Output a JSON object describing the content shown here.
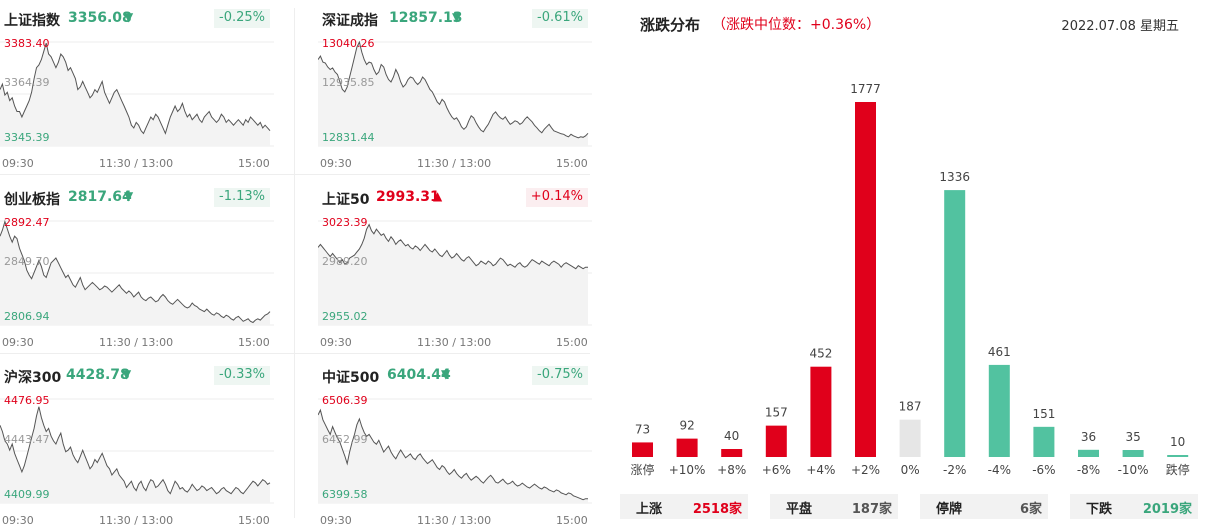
{
  "indices": [
    {
      "name": "上证指数",
      "value": "3356.08",
      "arrow": "▼",
      "change": "-0.25%",
      "trend": "down",
      "high": "3383.40",
      "mid": "3364.39",
      "low": "3345.39",
      "x_labels": [
        "09:30",
        "11:30 / 13:00",
        "15:00"
      ],
      "series": [
        3366,
        3368,
        3364,
        3365,
        3362,
        3363,
        3360,
        3358,
        3358,
        3356,
        3358,
        3360,
        3362,
        3365,
        3370,
        3374,
        3375,
        3377,
        3380,
        3383,
        3379,
        3378,
        3376,
        3374,
        3376,
        3379,
        3378,
        3376,
        3373,
        3374,
        3372,
        3370,
        3366,
        3367,
        3369,
        3367,
        3365,
        3363,
        3364,
        3366,
        3365,
        3367,
        3369,
        3365,
        3363,
        3361,
        3363,
        3365,
        3366,
        3364,
        3362,
        3360,
        3358,
        3356,
        3353,
        3352,
        3354,
        3353,
        3351,
        3350,
        3352,
        3354,
        3356,
        3355,
        3357,
        3356,
        3354,
        3352,
        3350,
        3353,
        3356,
        3358,
        3360,
        3358,
        3359,
        3361,
        3358,
        3356,
        3357,
        3355,
        3356,
        3357,
        3355,
        3354,
        3356,
        3357,
        3358,
        3356,
        3355,
        3354,
        3355,
        3357,
        3356,
        3354,
        3355,
        3354,
        3353,
        3354,
        3355,
        3354,
        3353,
        3355,
        3354,
        3356,
        3355,
        3354,
        3353,
        3354,
        3352,
        3353,
        3352,
        3351
      ]
    },
    {
      "name": "深证成指",
      "value": "12857.13",
      "arrow": "▼",
      "change": "-0.61%",
      "trend": "down",
      "high": "13040.26",
      "mid": "12935.85",
      "low": "12831.44",
      "x_labels": [
        "09:30",
        "11:30 / 13:00",
        "15:00"
      ],
      "series": [
        13005,
        13012,
        13000,
        12998,
        12990,
        12985,
        12988,
        12980,
        12975,
        12960,
        12945,
        12940,
        12950,
        12970,
        12990,
        13010,
        13030,
        13040,
        13020,
        13005,
        12995,
        13000,
        12998,
        12985,
        12975,
        12980,
        12995,
        12990,
        12975,
        12965,
        12960,
        12970,
        12985,
        12975,
        12960,
        12950,
        12955,
        12965,
        12970,
        12968,
        12960,
        12955,
        12960,
        12970,
        12965,
        12955,
        12945,
        12940,
        12930,
        12920,
        12915,
        12925,
        12920,
        12908,
        12898,
        12890,
        12885,
        12888,
        12880,
        12870,
        12865,
        12870,
        12882,
        12892,
        12888,
        12878,
        12870,
        12863,
        12860,
        12868,
        12875,
        12885,
        12895,
        12900,
        12893,
        12888,
        12885,
        12890,
        12882,
        12875,
        12878,
        12882,
        12880,
        12875,
        12878,
        12885,
        12890,
        12885,
        12880,
        12873,
        12868,
        12862,
        12858,
        12865,
        12870,
        12875,
        12868,
        12862,
        12860,
        12858,
        12856,
        12855,
        12852,
        12850,
        12855,
        12852,
        12850,
        12848,
        12850,
        12849,
        12852,
        12857
      ]
    },
    {
      "name": "创业板指",
      "value": "2817.64",
      "arrow": "▼",
      "change": "-1.13%",
      "trend": "down",
      "high": "2892.47",
      "mid": "2849.70",
      "low": "2806.94",
      "x_labels": [
        "09:30",
        "11:30 / 13:00",
        "15:00"
      ],
      "series": [
        2880,
        2885,
        2892,
        2886,
        2880,
        2875,
        2880,
        2878,
        2870,
        2865,
        2860,
        2852,
        2848,
        2845,
        2850,
        2855,
        2860,
        2855,
        2848,
        2846,
        2852,
        2858,
        2860,
        2862,
        2858,
        2854,
        2850,
        2846,
        2848,
        2844,
        2840,
        2838,
        2842,
        2846,
        2840,
        2836,
        2838,
        2840,
        2842,
        2840,
        2838,
        2836,
        2837,
        2839,
        2838,
        2836,
        2834,
        2836,
        2838,
        2840,
        2837,
        2835,
        2833,
        2835,
        2833,
        2830,
        2832,
        2834,
        2830,
        2828,
        2827,
        2829,
        2830,
        2828,
        2826,
        2827,
        2830,
        2832,
        2830,
        2827,
        2825,
        2824,
        2826,
        2828,
        2826,
        2824,
        2822,
        2821,
        2822,
        2825,
        2823,
        2822,
        2820,
        2819,
        2818,
        2820,
        2818,
        2816,
        2815,
        2817,
        2816,
        2814,
        2813,
        2815,
        2814,
        2812,
        2811,
        2813,
        2814,
        2812,
        2810,
        2811,
        2812,
        2810,
        2809,
        2811,
        2812,
        2811,
        2813,
        2815,
        2816,
        2818
      ]
    },
    {
      "name": "上证50",
      "value": "2993.31",
      "arrow": "▲",
      "change": "+0.14%",
      "trend": "up",
      "high": "3023.39",
      "mid": "2989.20",
      "low": "2955.02",
      "x_labels": [
        "09:30",
        "11:30 / 13:00",
        "15:00"
      ],
      "series": [
        3006,
        3008,
        3006,
        3004,
        3002,
        3000,
        3002,
        3000,
        2998,
        2996,
        2998,
        2995,
        2996,
        2999,
        3000,
        3001,
        3003,
        3005,
        3008,
        3012,
        3018,
        3021,
        3017,
        3015,
        3018,
        3016,
        3014,
        3015,
        3012,
        3010,
        3013,
        3011,
        3008,
        3010,
        3011,
        3009,
        3007,
        3008,
        3006,
        3005,
        3007,
        3006,
        3004,
        3006,
        3008,
        3006,
        3004,
        3003,
        3005,
        3003,
        3001,
        3000,
        3002,
        3004,
        3001,
        2999,
        3000,
        3002,
        3000,
        2998,
        2997,
        2999,
        3000,
        2998,
        2996,
        2994,
        2995,
        2997,
        2996,
        2995,
        2997,
        2996,
        2994,
        2995,
        2997,
        2999,
        2998,
        2996,
        2994,
        2995,
        2994,
        2993,
        2995,
        2996,
        2994,
        2993,
        2994,
        2996,
        2998,
        2997,
        2996,
        2995,
        2997,
        2996,
        2995,
        2994,
        2996,
        2997,
        2996,
        2995,
        2993,
        2995,
        2996,
        2995,
        2994,
        2993,
        2992,
        2994,
        2993,
        2992,
        2993,
        2993
      ]
    },
    {
      "name": "沪深300",
      "value": "4428.78",
      "arrow": "▼",
      "change": "-0.33%",
      "trend": "down",
      "high": "4476.95",
      "mid": "4443.47",
      "low": "4409.99",
      "x_labels": [
        "09:30",
        "11:30 / 13:00",
        "15:00"
      ],
      "series": [
        4460,
        4456,
        4450,
        4448,
        4444,
        4448,
        4442,
        4438,
        4434,
        4430,
        4434,
        4440,
        4446,
        4452,
        4458,
        4466,
        4472,
        4465,
        4460,
        4456,
        4458,
        4453,
        4450,
        4448,
        4452,
        4455,
        4448,
        4443,
        4444,
        4446,
        4441,
        4438,
        4436,
        4440,
        4444,
        4440,
        4436,
        4432,
        4434,
        4438,
        4436,
        4439,
        4442,
        4438,
        4434,
        4432,
        4428,
        4430,
        4432,
        4428,
        4426,
        4424,
        4420,
        4422,
        4424,
        4420,
        4418,
        4422,
        4424,
        4420,
        4418,
        4422,
        4425,
        4424,
        4420,
        4421,
        4423,
        4425,
        4422,
        4418,
        4416,
        4420,
        4424,
        4422,
        4419,
        4420,
        4418,
        4417,
        4419,
        4422,
        4420,
        4418,
        4419,
        4421,
        4420,
        4418,
        4419,
        4420,
        4418,
        4416,
        4417,
        4419,
        4420,
        4418,
        4417,
        4416,
        4418,
        4420,
        4419,
        4417,
        4416,
        4418,
        4420,
        4422,
        4424,
        4423,
        4421,
        4423,
        4425,
        4424,
        4422,
        4423
      ]
    },
    {
      "name": "中证500",
      "value": "6404.44",
      "arrow": "▼",
      "change": "-0.75%",
      "trend": "down",
      "high": "6506.39",
      "mid": "6452.99",
      "low": "6399.58",
      "x_labels": [
        "09:30",
        "11:30 / 13:00",
        "15:00"
      ],
      "series": [
        6490,
        6495,
        6485,
        6480,
        6475,
        6470,
        6478,
        6472,
        6466,
        6462,
        6455,
        6448,
        6440,
        6452,
        6462,
        6470,
        6480,
        6486,
        6478,
        6472,
        6468,
        6470,
        6466,
        6462,
        6460,
        6464,
        6458,
        6452,
        6455,
        6458,
        6452,
        6448,
        6445,
        6450,
        6454,
        6450,
        6446,
        6448,
        6450,
        6446,
        6444,
        6448,
        6450,
        6446,
        6443,
        6440,
        6442,
        6444,
        6440,
        6436,
        6434,
        6438,
        6436,
        6432,
        6429,
        6431,
        6434,
        6430,
        6427,
        6425,
        6428,
        6430,
        6426,
        6423,
        6425,
        6427,
        6425,
        6422,
        6420,
        6423,
        6426,
        6428,
        6425,
        6421,
        6420,
        6422,
        6424,
        6421,
        6419,
        6420,
        6422,
        6419,
        6417,
        6418,
        6420,
        6418,
        6416,
        6415,
        6417,
        6419,
        6417,
        6415,
        6414,
        6416,
        6415,
        6413,
        6412,
        6411,
        6413,
        6412,
        6410,
        6409,
        6408,
        6410,
        6409,
        6407,
        6406,
        6405,
        6404,
        6403,
        6404,
        6404
      ]
    }
  ],
  "distribution": {
    "title": "涨跌分布",
    "median_text": "（涨跌中位数：+0.36%）",
    "date": "2022.07.08 星期五",
    "colors": {
      "up": "#e0001b",
      "down": "#52c2a0",
      "flat": "#e6e6e6"
    },
    "stats": [
      {
        "label": "上涨",
        "value": "2518家",
        "trend": "up"
      },
      {
        "label": "平盘",
        "value": "187家",
        "trend": "flat"
      },
      {
        "label": "停牌",
        "value": "6家",
        "trend": "flat"
      },
      {
        "label": "下跌",
        "value": "2019家",
        "trend": "down"
      }
    ]
  },
  "chart_data": {
    "type": "bar",
    "categories": [
      "涨停",
      "+10%",
      "+8%",
      "+6%",
      "+4%",
      "+2%",
      "0%",
      "-2%",
      "-4%",
      "-6%",
      "-8%",
      "-10%",
      "跌停"
    ],
    "values": [
      73,
      92,
      40,
      157,
      452,
      1777,
      187,
      1336,
      461,
      151,
      36,
      35,
      10
    ],
    "bar_trend": [
      "up",
      "up",
      "up",
      "up",
      "up",
      "up",
      "flat",
      "down",
      "down",
      "down",
      "down",
      "down",
      "down"
    ],
    "ylim": [
      0,
      1777
    ]
  }
}
